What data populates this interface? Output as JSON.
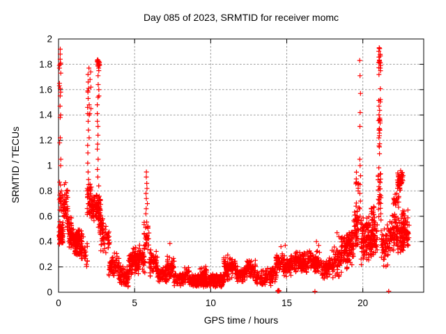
{
  "chart_data": {
    "type": "scatter",
    "title": "Day 085 of 2023, SRMTID for receiver momc",
    "xlabel": "GPS time / hours",
    "ylabel": "SRMTID / TECUs",
    "xlim": [
      0,
      24
    ],
    "ylim": [
      0,
      2
    ],
    "xticks": [
      0,
      5,
      10,
      15,
      20
    ],
    "yticks": [
      0,
      0.2,
      0.4,
      0.6,
      0.8,
      1,
      1.2,
      1.4,
      1.6,
      1.8,
      2
    ],
    "grid": true,
    "legend": "none",
    "colors": {
      "marker": "#ff0000",
      "grid": "#9a9a9a",
      "frame": "#000000",
      "background": "#ffffff",
      "text": "#000000"
    },
    "marker": {
      "glyph": "plus",
      "size": 7,
      "stroke_width": 1.2
    },
    "seed": 20230085,
    "point_clusters_x0_x1_y0_y1_n": [
      [
        0.02,
        0.3,
        0.35,
        0.56,
        70
      ],
      [
        0.05,
        0.2,
        0.56,
        0.95,
        16
      ],
      [
        0.22,
        0.55,
        0.55,
        0.8,
        28
      ],
      [
        0.38,
        0.62,
        0.62,
        0.88,
        20
      ],
      [
        0.55,
        0.9,
        0.4,
        0.62,
        35
      ],
      [
        0.7,
        1.55,
        0.33,
        0.52,
        120
      ],
      [
        1.05,
        1.5,
        0.27,
        0.38,
        35
      ],
      [
        1.5,
        1.9,
        0.18,
        0.46,
        26
      ],
      [
        1.88,
        2.16,
        0.58,
        0.86,
        40
      ],
      [
        2.14,
        2.5,
        0.55,
        0.8,
        55
      ],
      [
        2.48,
        2.78,
        0.56,
        0.8,
        50
      ],
      [
        2.62,
        2.95,
        0.44,
        0.62,
        35
      ],
      [
        2.53,
        2.7,
        1.72,
        1.86,
        14
      ],
      [
        2.78,
        3.35,
        0.26,
        0.56,
        40
      ],
      [
        3.3,
        4.0,
        0.1,
        0.32,
        70
      ],
      [
        3.95,
        4.65,
        0.04,
        0.22,
        80
      ],
      [
        4.6,
        5.3,
        0.12,
        0.36,
        110
      ],
      [
        5.28,
        5.68,
        0.15,
        0.4,
        48
      ],
      [
        5.6,
        5.95,
        0.28,
        0.58,
        32
      ],
      [
        5.95,
        6.55,
        0.12,
        0.36,
        65
      ],
      [
        6.5,
        7.15,
        0.06,
        0.22,
        65
      ],
      [
        7.1,
        7.6,
        0.09,
        0.29,
        55
      ],
      [
        7.58,
        8.35,
        0.04,
        0.17,
        70
      ],
      [
        8.28,
        8.6,
        0.07,
        0.22,
        26
      ],
      [
        8.55,
        10.9,
        0.03,
        0.15,
        250
      ],
      [
        9.25,
        9.75,
        0.1,
        0.21,
        30
      ],
      [
        10.85,
        11.65,
        0.09,
        0.3,
        95
      ],
      [
        11.62,
        12.35,
        0.07,
        0.21,
        70
      ],
      [
        12.32,
        12.95,
        0.09,
        0.26,
        62
      ],
      [
        12.92,
        13.65,
        0.05,
        0.18,
        55
      ],
      [
        13.62,
        14.3,
        0.05,
        0.22,
        58
      ],
      [
        14.28,
        14.78,
        0.14,
        0.33,
        42
      ],
      [
        14.72,
        15.3,
        0.12,
        0.3,
        60
      ],
      [
        15.28,
        16.4,
        0.14,
        0.33,
        115
      ],
      [
        16.38,
        17.3,
        0.13,
        0.34,
        92
      ],
      [
        17.28,
        18.0,
        0.1,
        0.28,
        65
      ],
      [
        17.98,
        18.6,
        0.1,
        0.36,
        62
      ],
      [
        18.55,
        19.3,
        0.17,
        0.48,
        75
      ],
      [
        19.0,
        19.45,
        0.24,
        0.52,
        50
      ],
      [
        19.38,
        19.75,
        0.34,
        0.72,
        55
      ],
      [
        19.52,
        19.72,
        0.72,
        1.0,
        10
      ],
      [
        19.88,
        20.5,
        0.2,
        0.62,
        100
      ],
      [
        20.45,
        20.95,
        0.24,
        0.6,
        70
      ],
      [
        20.55,
        20.82,
        0.52,
        0.72,
        16
      ],
      [
        21.0,
        21.2,
        0.5,
        1.0,
        28
      ],
      [
        21.02,
        21.19,
        1.0,
        1.68,
        24
      ],
      [
        21.04,
        21.18,
        1.68,
        1.99,
        20
      ],
      [
        21.18,
        21.7,
        0.17,
        0.55,
        55
      ],
      [
        21.68,
        22.3,
        0.3,
        0.66,
        70
      ],
      [
        22.0,
        22.4,
        0.66,
        0.8,
        20
      ],
      [
        22.26,
        22.64,
        0.79,
        0.97,
        48
      ],
      [
        22.28,
        23.05,
        0.28,
        0.66,
        95
      ],
      [
        22.52,
        22.74,
        0.3,
        0.7,
        28
      ]
    ],
    "spike_columns_x_jitter_values": [
      [
        0.1,
        0.05,
        [
          1.92,
          1.88,
          1.84,
          1.81,
          1.8,
          1.79,
          1.77,
          1.73,
          1.65,
          1.63,
          1.61,
          1.58,
          1.55,
          1.47,
          1.4,
          1.38,
          1.22,
          1.18,
          1.05,
          1.0
        ]
      ],
      [
        1.97,
        0.07,
        [
          1.77,
          1.72,
          1.66,
          1.61,
          1.59,
          1.58,
          1.53,
          1.48,
          1.46,
          1.41,
          1.4,
          1.35,
          1.28,
          1.22,
          1.16,
          1.1,
          1.02,
          0.95,
          0.89
        ]
      ],
      [
        2.1,
        0.05,
        [
          1.74,
          1.68,
          1.62,
          1.45,
          1.41
        ]
      ],
      [
        2.6,
        0.06,
        [
          1.82,
          1.79,
          1.77,
          1.75,
          1.71,
          1.64,
          1.6,
          1.55,
          1.54,
          1.48,
          1.41,
          1.35,
          1.31,
          1.24,
          1.17,
          1.13,
          1.05,
          0.97,
          0.91,
          0.84
        ]
      ],
      [
        5.78,
        0.06,
        [
          0.95,
          0.91,
          0.86,
          0.82,
          0.78,
          0.74,
          0.7,
          0.66,
          0.62
        ]
      ],
      [
        19.82,
        0.04,
        [
          1.83,
          1.71,
          1.57,
          1.42,
          1.31,
          1.05,
          1.0,
          0.92,
          0.85,
          0.78,
          0.72,
          0.66,
          0.6,
          0.55,
          0.5
        ]
      ]
    ],
    "isolated_points": [
      [
        7.32,
        0.385
      ],
      [
        14.62,
        0.36
      ],
      [
        14.9,
        0.37
      ],
      [
        16.95,
        0.4
      ],
      [
        17.1,
        0.37
      ],
      [
        18.3,
        0.47
      ],
      [
        18.42,
        0.44
      ],
      [
        14.4,
        0.01
      ],
      [
        14.44,
        0.015
      ],
      [
        14.47,
        0.008
      ],
      [
        14.5,
        0.012
      ],
      [
        16.85,
        0.006
      ],
      [
        21.7,
        0.008
      ]
    ]
  }
}
